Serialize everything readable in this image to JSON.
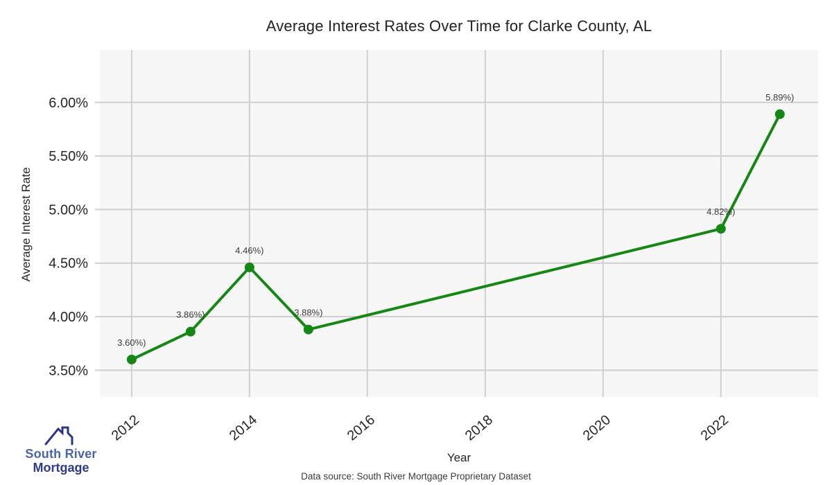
{
  "chart_data": {
    "type": "line",
    "title": "Average Interest Rates Over Time for Clarke County, AL",
    "xlabel": "Year",
    "ylabel": "Average Interest Rate",
    "x": [
      2012,
      2013,
      2014,
      2015,
      2022,
      2023
    ],
    "values": [
      3.6,
      3.86,
      4.46,
      3.88,
      4.82,
      5.89
    ],
    "point_labels": [
      "3.60%)",
      "3.86%)",
      "4.46%)",
      "3.88%)",
      "4.82%)",
      "5.89%)"
    ],
    "x_tick_values": [
      2012,
      2014,
      2016,
      2018,
      2020,
      2022
    ],
    "x_tick_labels": [
      "2012",
      "2014",
      "2016",
      "2018",
      "2020",
      "2022"
    ],
    "y_tick_values": [
      3.5,
      4.0,
      4.5,
      5.0,
      5.5,
      6.0
    ],
    "y_tick_labels": [
      "3.50%",
      "4.00%",
      "4.50%",
      "5.00%",
      "5.50%",
      "6.00%"
    ],
    "xlim": [
      2011.46,
      2023.65
    ],
    "ylim": [
      3.25,
      6.49
    ],
    "grid": true,
    "legend": "none",
    "line_color": "#148714",
    "marker": "circle"
  },
  "footer": {
    "source": "Data source: South River Mortgage Proprietary Dataset"
  },
  "logo": {
    "line1": "South River",
    "line2": "Mortgage",
    "icon": "house-roof-icon",
    "color_primary": "#2e3a8c",
    "color_secondary": "#4a64ad"
  },
  "colors": {
    "line": "#148714",
    "plot_background": "#f7f7f7",
    "gridline": "#cfcfcf",
    "tick_text": "#262626",
    "point_label_text": "#3a3a3a"
  }
}
